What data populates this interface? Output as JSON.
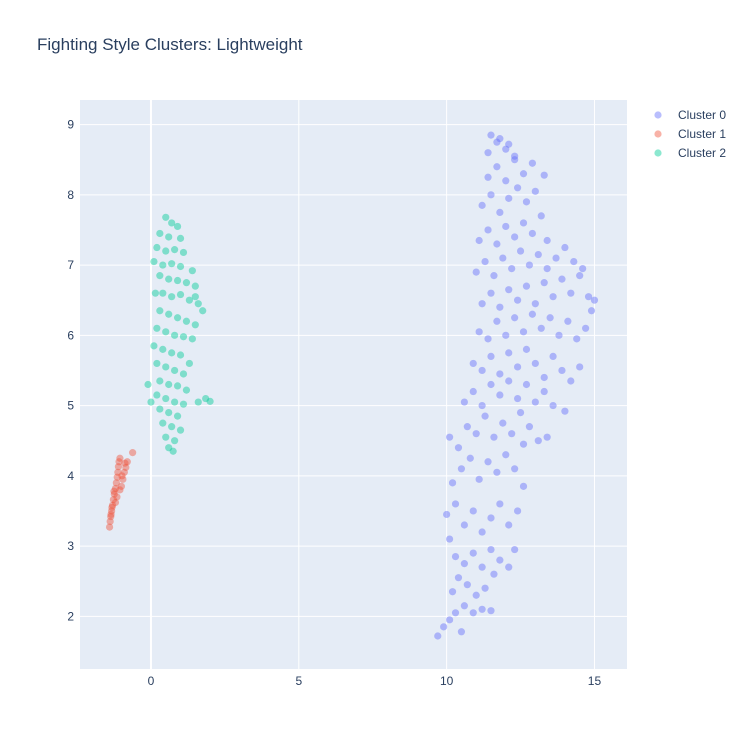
{
  "chart_data": {
    "type": "scatter",
    "title": "Fighting Style Clusters: Lightweight",
    "xlabel": "",
    "ylabel": "",
    "xlim": [
      -2.4,
      16.1
    ],
    "ylim": [
      1.25,
      9.35
    ],
    "xticks": [
      0,
      5,
      10,
      15
    ],
    "yticks": [
      2,
      3,
      4,
      5,
      6,
      7,
      8,
      9
    ],
    "grid": true,
    "legend_position": "top-right",
    "plot_background": "#e5ecf6",
    "series": [
      {
        "name": "Cluster 0",
        "color": "#636efa",
        "points": [
          [
            9.7,
            1.72
          ],
          [
            9.9,
            1.85
          ],
          [
            10.1,
            1.95
          ],
          [
            10.3,
            2.05
          ],
          [
            10.5,
            1.78
          ],
          [
            10.6,
            2.15
          ],
          [
            10.9,
            2.05
          ],
          [
            11.2,
            2.1
          ],
          [
            11.5,
            2.08
          ],
          [
            10.2,
            2.35
          ],
          [
            10.4,
            2.55
          ],
          [
            10.7,
            2.45
          ],
          [
            11.0,
            2.3
          ],
          [
            11.3,
            2.4
          ],
          [
            11.6,
            2.6
          ],
          [
            10.1,
            3.1
          ],
          [
            10.3,
            2.85
          ],
          [
            10.6,
            2.75
          ],
          [
            10.9,
            2.9
          ],
          [
            11.2,
            2.7
          ],
          [
            11.5,
            2.95
          ],
          [
            11.8,
            2.8
          ],
          [
            12.1,
            2.7
          ],
          [
            12.3,
            2.95
          ],
          [
            10.0,
            3.45
          ],
          [
            10.3,
            3.6
          ],
          [
            10.6,
            3.3
          ],
          [
            10.9,
            3.5
          ],
          [
            11.2,
            3.2
          ],
          [
            11.5,
            3.4
          ],
          [
            11.8,
            3.6
          ],
          [
            12.1,
            3.3
          ],
          [
            12.4,
            3.5
          ],
          [
            12.6,
            3.85
          ],
          [
            10.2,
            3.9
          ],
          [
            10.5,
            4.1
          ],
          [
            10.8,
            4.25
          ],
          [
            11.1,
            3.95
          ],
          [
            11.4,
            4.2
          ],
          [
            11.7,
            4.05
          ],
          [
            12.0,
            4.3
          ],
          [
            12.3,
            4.1
          ],
          [
            12.6,
            4.45
          ],
          [
            10.1,
            4.55
          ],
          [
            10.4,
            4.4
          ],
          [
            10.7,
            4.7
          ],
          [
            11.0,
            4.6
          ],
          [
            11.3,
            4.85
          ],
          [
            11.6,
            4.55
          ],
          [
            11.9,
            4.75
          ],
          [
            12.2,
            4.6
          ],
          [
            12.5,
            4.9
          ],
          [
            12.8,
            4.7
          ],
          [
            13.1,
            4.5
          ],
          [
            13.4,
            4.55
          ],
          [
            10.6,
            5.05
          ],
          [
            10.9,
            5.2
          ],
          [
            11.2,
            5.0
          ],
          [
            11.5,
            5.3
          ],
          [
            11.8,
            5.15
          ],
          [
            12.1,
            5.35
          ],
          [
            12.4,
            5.1
          ],
          [
            12.7,
            5.3
          ],
          [
            13.0,
            5.05
          ],
          [
            13.3,
            5.2
          ],
          [
            13.6,
            5.0
          ],
          [
            14.0,
            4.92
          ],
          [
            10.9,
            5.6
          ],
          [
            11.2,
            5.5
          ],
          [
            11.5,
            5.7
          ],
          [
            11.8,
            5.45
          ],
          [
            12.1,
            5.75
          ],
          [
            12.4,
            5.55
          ],
          [
            12.7,
            5.8
          ],
          [
            13.0,
            5.6
          ],
          [
            13.3,
            5.4
          ],
          [
            13.6,
            5.7
          ],
          [
            13.9,
            5.5
          ],
          [
            14.2,
            5.35
          ],
          [
            14.5,
            5.55
          ],
          [
            11.1,
            6.05
          ],
          [
            11.4,
            5.95
          ],
          [
            11.7,
            6.2
          ],
          [
            12.0,
            6.0
          ],
          [
            12.3,
            6.25
          ],
          [
            12.6,
            6.05
          ],
          [
            12.9,
            6.3
          ],
          [
            13.2,
            6.1
          ],
          [
            13.5,
            6.25
          ],
          [
            13.8,
            6.0
          ],
          [
            14.1,
            6.2
          ],
          [
            14.4,
            5.95
          ],
          [
            14.7,
            6.1
          ],
          [
            14.9,
            6.35
          ],
          [
            11.2,
            6.45
          ],
          [
            11.5,
            6.6
          ],
          [
            11.8,
            6.4
          ],
          [
            12.1,
            6.65
          ],
          [
            12.4,
            6.5
          ],
          [
            12.7,
            6.7
          ],
          [
            13.0,
            6.45
          ],
          [
            13.3,
            6.75
          ],
          [
            13.6,
            6.55
          ],
          [
            13.9,
            6.8
          ],
          [
            14.2,
            6.6
          ],
          [
            14.5,
            6.85
          ],
          [
            14.8,
            6.55
          ],
          [
            15.0,
            6.5
          ],
          [
            11.0,
            6.9
          ],
          [
            11.3,
            7.05
          ],
          [
            11.6,
            6.85
          ],
          [
            11.9,
            7.1
          ],
          [
            12.2,
            6.95
          ],
          [
            12.5,
            7.2
          ],
          [
            12.8,
            7.0
          ],
          [
            13.1,
            7.15
          ],
          [
            13.4,
            6.95
          ],
          [
            13.7,
            7.1
          ],
          [
            14.0,
            7.25
          ],
          [
            14.3,
            7.05
          ],
          [
            14.6,
            6.95
          ],
          [
            11.1,
            7.35
          ],
          [
            11.4,
            7.5
          ],
          [
            11.7,
            7.3
          ],
          [
            12.0,
            7.55
          ],
          [
            12.3,
            7.4
          ],
          [
            12.6,
            7.6
          ],
          [
            12.9,
            7.45
          ],
          [
            13.2,
            7.7
          ],
          [
            13.4,
            7.35
          ],
          [
            11.2,
            7.85
          ],
          [
            11.5,
            8.0
          ],
          [
            11.8,
            7.75
          ],
          [
            12.1,
            7.95
          ],
          [
            12.4,
            8.1
          ],
          [
            12.7,
            7.9
          ],
          [
            13.0,
            8.05
          ],
          [
            11.4,
            8.25
          ],
          [
            11.7,
            8.4
          ],
          [
            12.0,
            8.2
          ],
          [
            12.3,
            8.5
          ],
          [
            12.6,
            8.3
          ],
          [
            12.9,
            8.45
          ],
          [
            13.3,
            8.28
          ],
          [
            11.4,
            8.6
          ],
          [
            11.7,
            8.75
          ],
          [
            12.0,
            8.65
          ],
          [
            12.3,
            8.55
          ],
          [
            11.5,
            8.85
          ],
          [
            11.8,
            8.8
          ],
          [
            12.1,
            8.72
          ]
        ]
      },
      {
        "name": "Cluster 1",
        "color": "#ef553b",
        "points": [
          [
            -1.4,
            3.27
          ],
          [
            -1.38,
            3.35
          ],
          [
            -1.36,
            3.42
          ],
          [
            -1.33,
            3.5
          ],
          [
            -1.3,
            3.58
          ],
          [
            -1.27,
            3.66
          ],
          [
            -1.24,
            3.74
          ],
          [
            -1.2,
            3.82
          ],
          [
            -1.17,
            3.9
          ],
          [
            -1.14,
            3.98
          ],
          [
            -1.12,
            4.05
          ],
          [
            -1.1,
            4.13
          ],
          [
            -1.08,
            4.2
          ],
          [
            -1.05,
            4.25
          ],
          [
            -1.0,
            3.85
          ],
          [
            -0.95,
            3.95
          ],
          [
            -0.9,
            4.05
          ],
          [
            -0.85,
            4.12
          ],
          [
            -0.8,
            4.2
          ],
          [
            -0.62,
            4.33
          ],
          [
            -1.25,
            3.78
          ],
          [
            -1.32,
            3.55
          ],
          [
            -1.15,
            3.7
          ],
          [
            -1.2,
            3.62
          ],
          [
            -1.05,
            3.8
          ],
          [
            -0.98,
            4.0
          ],
          [
            -0.88,
            4.18
          ],
          [
            -1.35,
            3.45
          ]
        ]
      },
      {
        "name": "Cluster 2",
        "color": "#00cc96",
        "points": [
          [
            0.5,
            7.68
          ],
          [
            0.7,
            7.6
          ],
          [
            0.9,
            7.55
          ],
          [
            0.3,
            7.45
          ],
          [
            0.6,
            7.4
          ],
          [
            1.0,
            7.38
          ],
          [
            0.2,
            7.25
          ],
          [
            0.5,
            7.2
          ],
          [
            0.8,
            7.22
          ],
          [
            1.1,
            7.18
          ],
          [
            0.1,
            7.05
          ],
          [
            0.4,
            7.0
          ],
          [
            0.7,
            7.02
          ],
          [
            1.0,
            6.98
          ],
          [
            1.4,
            6.92
          ],
          [
            0.3,
            6.85
          ],
          [
            0.6,
            6.8
          ],
          [
            0.9,
            6.78
          ],
          [
            1.2,
            6.75
          ],
          [
            1.5,
            6.7
          ],
          [
            0.4,
            6.6
          ],
          [
            0.7,
            6.55
          ],
          [
            1.0,
            6.58
          ],
          [
            1.3,
            6.5
          ],
          [
            1.6,
            6.45
          ],
          [
            1.75,
            6.35
          ],
          [
            0.3,
            6.35
          ],
          [
            0.6,
            6.3
          ],
          [
            0.9,
            6.25
          ],
          [
            1.2,
            6.2
          ],
          [
            1.5,
            6.15
          ],
          [
            0.2,
            6.1
          ],
          [
            0.5,
            6.05
          ],
          [
            0.8,
            6.0
          ],
          [
            1.1,
            5.98
          ],
          [
            1.4,
            5.95
          ],
          [
            0.1,
            5.85
          ],
          [
            0.4,
            5.8
          ],
          [
            0.7,
            5.75
          ],
          [
            1.0,
            5.72
          ],
          [
            0.2,
            5.6
          ],
          [
            0.5,
            5.55
          ],
          [
            0.8,
            5.5
          ],
          [
            1.1,
            5.45
          ],
          [
            0.3,
            5.35
          ],
          [
            0.6,
            5.3
          ],
          [
            0.9,
            5.28
          ],
          [
            1.2,
            5.22
          ],
          [
            -0.1,
            5.3
          ],
          [
            0.2,
            5.15
          ],
          [
            0.5,
            5.1
          ],
          [
            0.8,
            5.05
          ],
          [
            1.1,
            5.02
          ],
          [
            1.6,
            5.05
          ],
          [
            1.85,
            5.1
          ],
          [
            2.0,
            5.06
          ],
          [
            0.3,
            4.95
          ],
          [
            0.6,
            4.9
          ],
          [
            0.9,
            4.85
          ],
          [
            0.4,
            4.75
          ],
          [
            0.7,
            4.7
          ],
          [
            1.0,
            4.65
          ],
          [
            0.5,
            4.55
          ],
          [
            0.8,
            4.5
          ],
          [
            0.6,
            4.4
          ],
          [
            0.75,
            4.35
          ],
          [
            0.0,
            5.05
          ],
          [
            1.3,
            5.6
          ],
          [
            1.5,
            6.55
          ],
          [
            0.15,
            6.6
          ]
        ]
      }
    ]
  }
}
